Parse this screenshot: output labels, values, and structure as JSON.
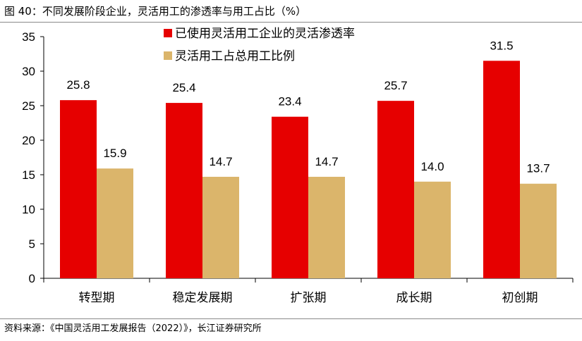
{
  "title": "图 40：不同发展阶段企业，灵活用工的渗透率与用工占比（%）",
  "source": "资料来源：《中国灵活用工发展报告（2022）》，长江证券研究所",
  "chart_data": {
    "type": "bar",
    "title": "图 40：不同发展阶段企业，灵活用工的渗透率与用工占比（%）",
    "categories": [
      "转型期",
      "稳定发展期",
      "扩张期",
      "成长期",
      "初创期"
    ],
    "series": [
      {
        "name": "已使用灵活用工企业的灵活渗透率",
        "color": "#e60000",
        "values": [
          25.8,
          25.4,
          23.4,
          25.7,
          31.5
        ],
        "labels": [
          "25.8",
          "25.4",
          "23.4",
          "25.7",
          "31.5"
        ]
      },
      {
        "name": "灵活用工占总用工比例",
        "color": "#dbb56b",
        "values": [
          15.9,
          14.7,
          14.7,
          14.0,
          13.7
        ],
        "labels": [
          "15.9",
          "14.7",
          "14.7",
          "14.0",
          "13.7"
        ]
      }
    ],
    "ylim": [
      0,
      35
    ],
    "yticks": [
      0,
      5,
      10,
      15,
      20,
      25,
      30,
      35
    ],
    "grid": false,
    "legend": "top"
  }
}
